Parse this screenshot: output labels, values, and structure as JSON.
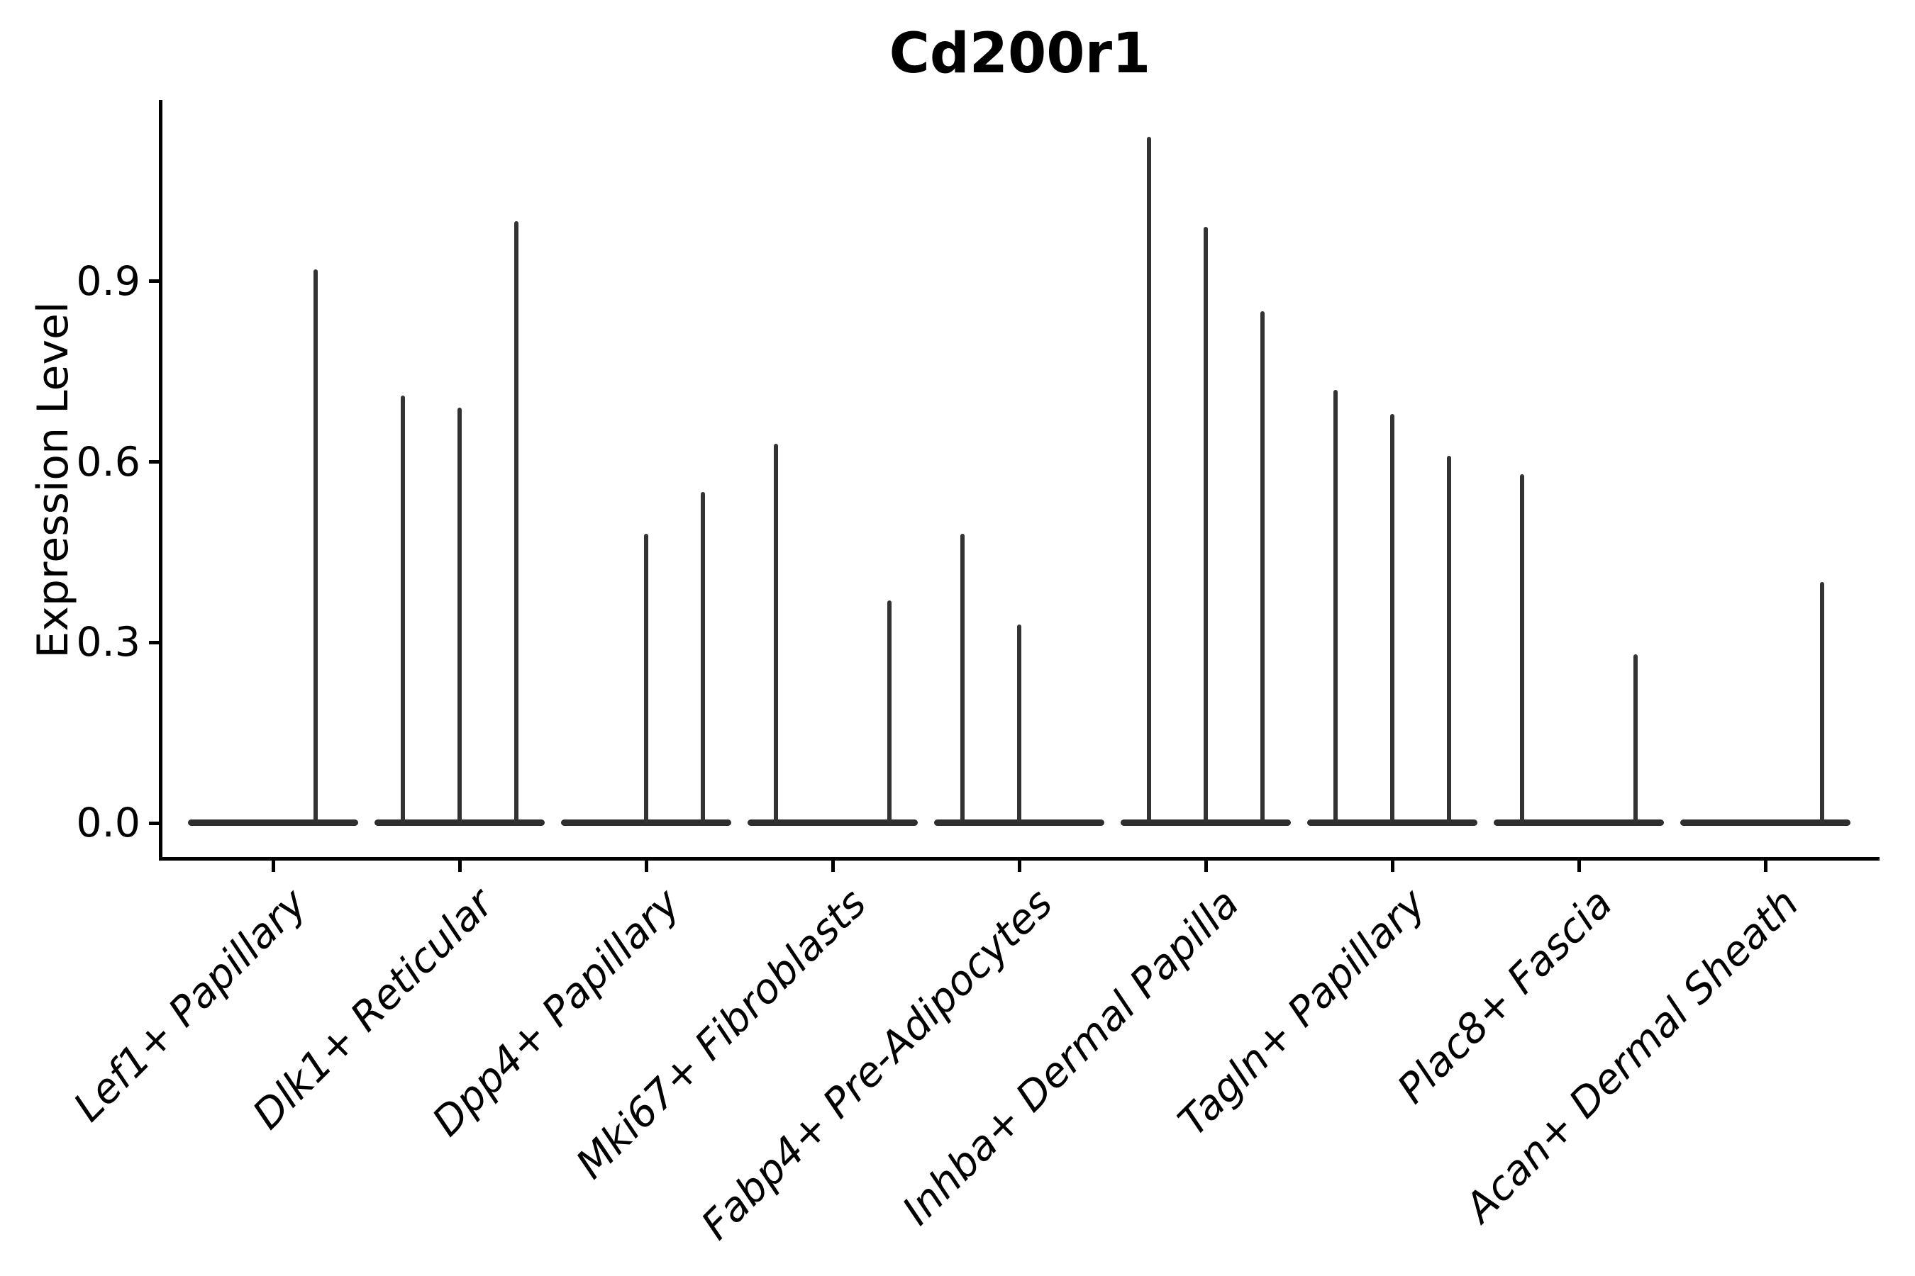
{
  "title": "Cd200r1",
  "y_axis": {
    "label": "Expression Level",
    "tick_labels": [
      "0.0",
      "0.3",
      "0.6",
      "0.9"
    ]
  },
  "x_axis": {
    "tick_labels": [
      "Lef1+ Papillary",
      "Dlk1+ Reticular",
      "Dpp4+ Papillary",
      "Mki67+ Fibroblasts",
      "Fabp4+ Pre-Adipocytes",
      "Inhba+ Dermal Papilla",
      "Tagln+ Papillary",
      "Plac8+ Fascia",
      "Acan+ Dermal Sheath"
    ]
  },
  "chart_data": {
    "type": "violin",
    "title": "Cd200r1",
    "xlabel": "",
    "ylabel": "Expression Level",
    "ylim": [
      0,
      1.2
    ],
    "yticks": [
      0.0,
      0.3,
      0.6,
      0.9
    ],
    "grid": false,
    "legend": false,
    "categories": [
      "Lef1+ Papillary",
      "Dlk1+ Reticular",
      "Dpp4+ Papillary",
      "Mki67+ Fibroblasts",
      "Fabp4+ Pre-Adipocytes",
      "Inhba+ Dermal Papilla",
      "Tagln+ Papillary",
      "Plac8+ Fascia",
      "Acan+ Dermal Sheath"
    ],
    "violins": [
      {
        "category": "Lef1+ Papillary",
        "baseline_value": 0.0,
        "spikes": [
          {
            "pos": 0.75,
            "max": 0.92
          }
        ]
      },
      {
        "category": "Dlk1+ Reticular",
        "baseline_value": 0.0,
        "spikes": [
          {
            "pos": 0.167,
            "max": 0.71
          },
          {
            "pos": 0.5,
            "max": 0.69
          },
          {
            "pos": 0.833,
            "max": 1.0
          }
        ]
      },
      {
        "category": "Dpp4+ Papillary",
        "baseline_value": 0.0,
        "spikes": [
          {
            "pos": 0.5,
            "max": 0.48
          },
          {
            "pos": 0.833,
            "max": 0.55
          }
        ]
      },
      {
        "category": "Mki67+ Fibroblasts",
        "baseline_value": 0.0,
        "spikes": [
          {
            "pos": 0.167,
            "max": 0.63
          },
          {
            "pos": 0.833,
            "max": 0.37
          }
        ]
      },
      {
        "category": "Fabp4+ Pre-Adipocytes",
        "baseline_value": 0.0,
        "spikes": [
          {
            "pos": 0.167,
            "max": 0.48
          },
          {
            "pos": 0.5,
            "max": 0.33
          }
        ]
      },
      {
        "category": "Inhba+ Dermal Papilla",
        "baseline_value": 0.0,
        "spikes": [
          {
            "pos": 0.167,
            "max": 1.14
          },
          {
            "pos": 0.5,
            "max": 0.99
          },
          {
            "pos": 0.833,
            "max": 0.85
          }
        ]
      },
      {
        "category": "Tagln+ Papillary",
        "baseline_value": 0.0,
        "spikes": [
          {
            "pos": 0.167,
            "max": 0.72
          },
          {
            "pos": 0.5,
            "max": 0.68
          },
          {
            "pos": 0.833,
            "max": 0.61
          }
        ]
      },
      {
        "category": "Plac8+ Fascia",
        "baseline_value": 0.0,
        "spikes": [
          {
            "pos": 0.167,
            "max": 0.58
          },
          {
            "pos": 0.833,
            "max": 0.28
          }
        ]
      },
      {
        "category": "Acan+ Dermal Sheath",
        "baseline_value": 0.0,
        "spikes": [
          {
            "pos": 0.833,
            "max": 0.4
          }
        ]
      }
    ],
    "colors": {
      "violin": "#2e2e2e",
      "spike": "#333333",
      "axis": "#000000",
      "text": "#000000",
      "background": "#ffffff"
    }
  }
}
